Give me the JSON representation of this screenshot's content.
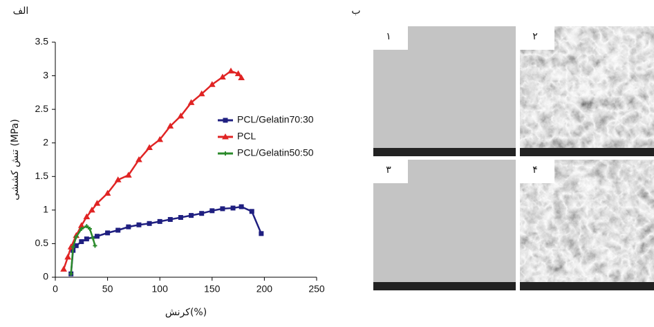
{
  "panel_labels": {
    "a": "الف",
    "b": "ب"
  },
  "chart_data": {
    "type": "line",
    "xlabel": "کرنش(%)",
    "ylabel": "تنش کششی (MPa)",
    "xlim": [
      0,
      250
    ],
    "xticks": [
      0,
      50,
      100,
      150,
      200,
      250
    ],
    "ylim": [
      0,
      3.5
    ],
    "yticks": [
      0,
      0.5,
      1,
      1.5,
      2,
      2.5,
      3,
      3.5
    ],
    "legend": "right",
    "series": [
      {
        "name": "PCL/Gelatin70:30",
        "color": "#1f1f80",
        "marker": "square",
        "x": [
          15,
          17,
          20,
          25,
          30,
          40,
          50,
          60,
          70,
          80,
          90,
          100,
          110,
          120,
          130,
          140,
          150,
          160,
          170,
          178,
          188,
          197
        ],
        "values": [
          0.05,
          0.4,
          0.47,
          0.53,
          0.57,
          0.61,
          0.66,
          0.7,
          0.75,
          0.78,
          0.8,
          0.83,
          0.86,
          0.89,
          0.92,
          0.95,
          0.99,
          1.02,
          1.03,
          1.05,
          0.98,
          0.65
        ]
      },
      {
        "name": "PCL",
        "color": "#e02424",
        "marker": "triangle",
        "x": [
          8,
          12,
          15,
          20,
          25,
          30,
          35,
          40,
          50,
          60,
          70,
          80,
          90,
          100,
          110,
          120,
          130,
          140,
          150,
          160,
          168,
          175,
          178
        ],
        "values": [
          0.12,
          0.3,
          0.45,
          0.62,
          0.77,
          0.9,
          1.0,
          1.1,
          1.25,
          1.45,
          1.52,
          1.75,
          1.93,
          2.05,
          2.25,
          2.4,
          2.6,
          2.73,
          2.87,
          2.98,
          3.07,
          3.03,
          2.97
        ]
      },
      {
        "name": "PCL/Gelatin50:50",
        "color": "#2a8a2a",
        "marker": "plus",
        "x": [
          15,
          17,
          20,
          25,
          30,
          33,
          36,
          38
        ],
        "values": [
          0.05,
          0.45,
          0.6,
          0.72,
          0.76,
          0.72,
          0.58,
          0.47
        ]
      }
    ]
  },
  "images": [
    {
      "label": "۱"
    },
    {
      "label": "۲"
    },
    {
      "label": "۳"
    },
    {
      "label": "۴"
    }
  ]
}
